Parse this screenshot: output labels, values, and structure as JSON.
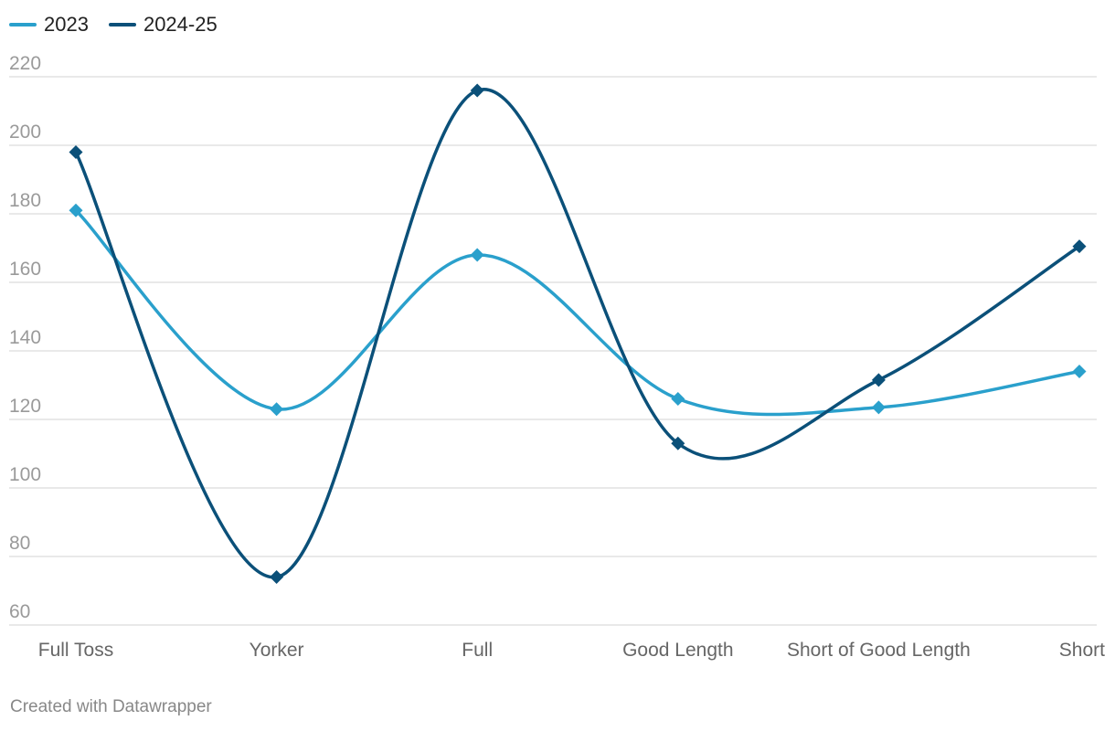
{
  "chart_data": {
    "type": "line",
    "categories": [
      "Full Toss",
      "Yorker",
      "Full",
      "Good Length",
      "Short of Good Length",
      "Short"
    ],
    "series": [
      {
        "name": "2023",
        "color": "#2aa0cc",
        "values": [
          181,
          123,
          168,
          126,
          123.5,
          134
        ]
      },
      {
        "name": "2024-25",
        "color": "#0b5079",
        "values": [
          198,
          74,
          216,
          113,
          131.5,
          170.5
        ]
      }
    ],
    "yticks": [
      60,
      80,
      100,
      120,
      140,
      160,
      180,
      200,
      220
    ],
    "ylim": [
      60,
      220
    ],
    "grid": true,
    "legend_position": "top-left",
    "marker": "diamond",
    "smooth": true
  },
  "footer": "Created with Datawrapper"
}
